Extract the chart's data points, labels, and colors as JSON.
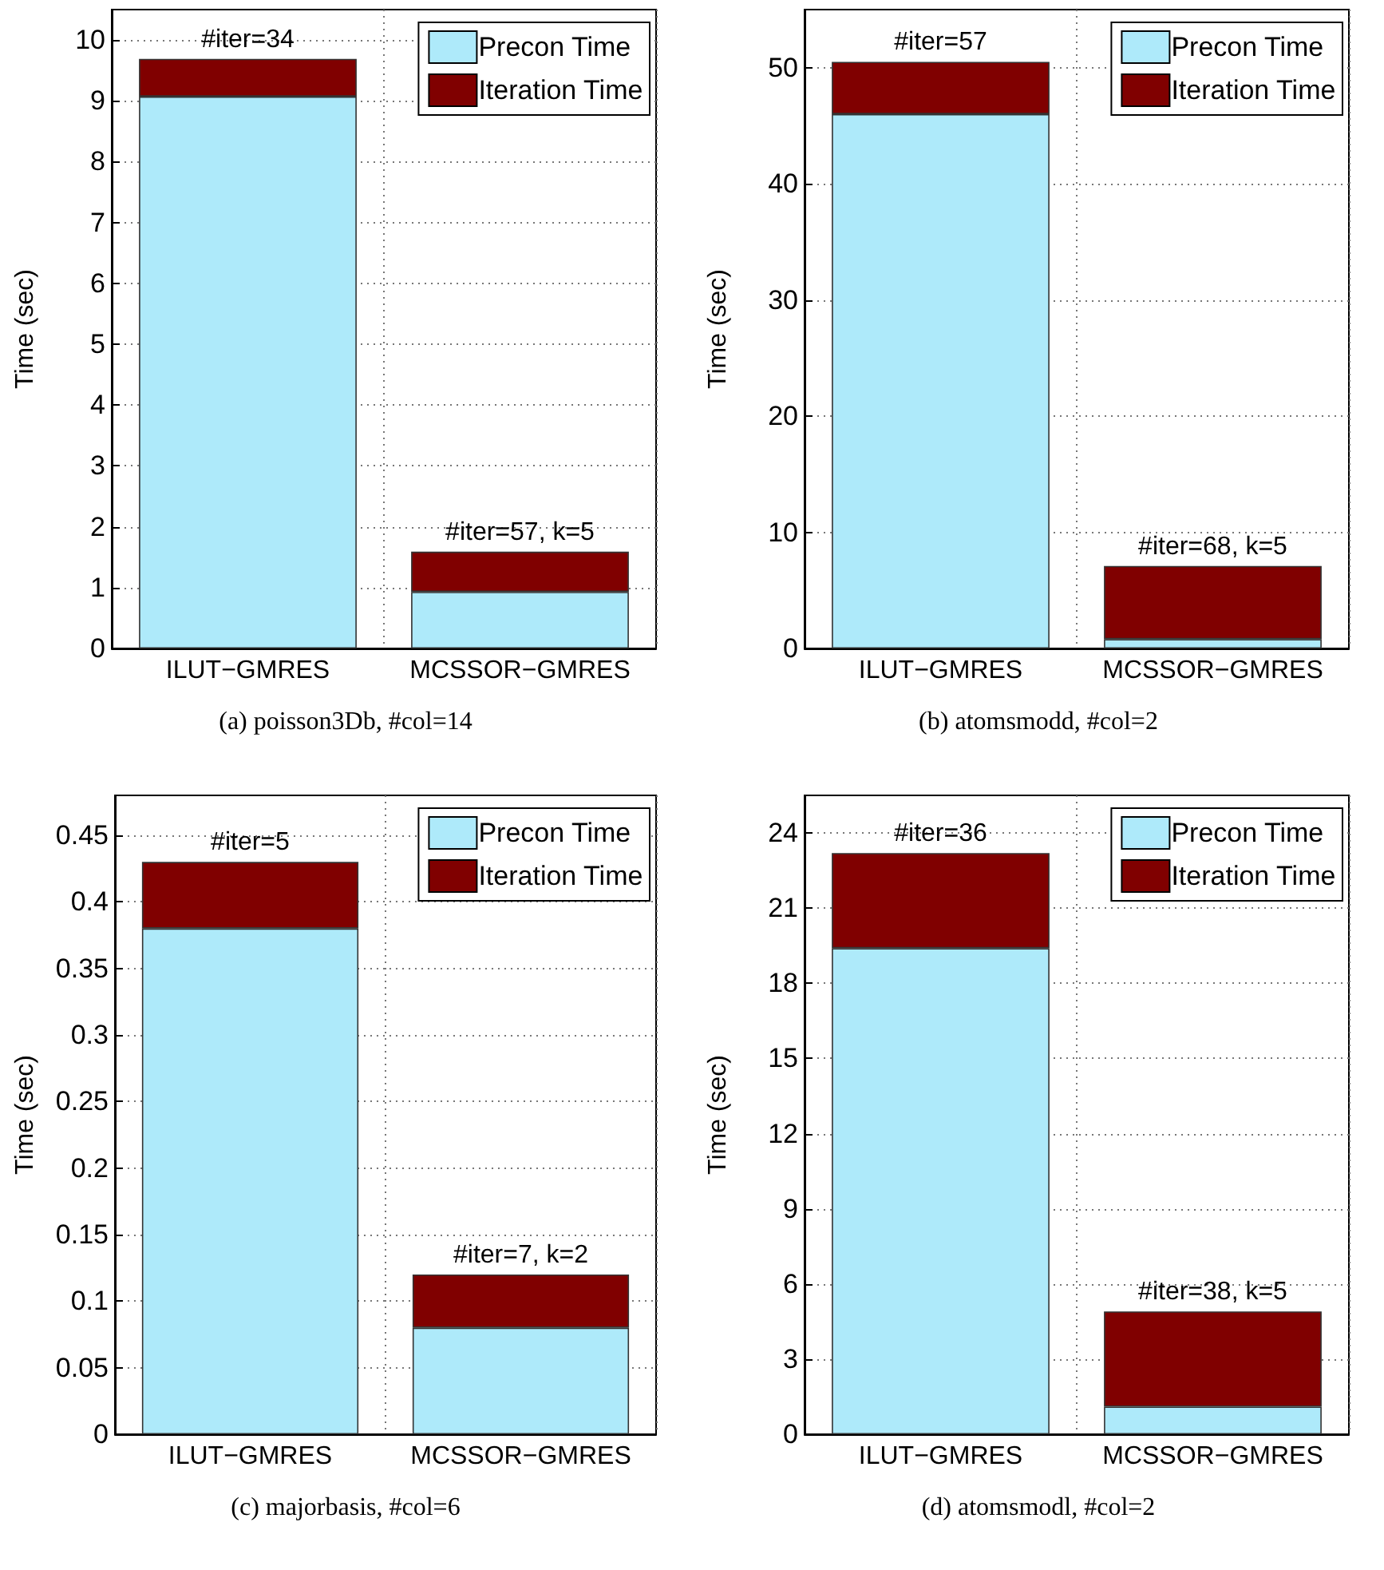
{
  "chart_data": [
    {
      "type": "bar",
      "stacked": true,
      "categories": [
        "ILUT−GMRES",
        "MCSSOR−GMRES"
      ],
      "ylabel": "Time (sec)",
      "ylim": [
        0,
        10.5
      ],
      "yticks": [
        0,
        1,
        2,
        3,
        4,
        5,
        6,
        7,
        8,
        9,
        10
      ],
      "grid": true,
      "legend": "top right",
      "series": [
        {
          "name": "Precon Time",
          "color": "#aeeafa",
          "values": [
            9.07,
            0.93
          ]
        },
        {
          "name": "Iteration Time",
          "color": "#800000",
          "values": [
            0.62,
            0.66
          ]
        }
      ],
      "annotations": [
        {
          "text": "#iter=34",
          "x": "ILUT−GMRES",
          "y": 9.69
        },
        {
          "text": "#iter=57, k=5",
          "x": "MCSSOR−GMRES",
          "y": 1.59
        },
        "(a) poisson3Db, #col=14"
      ]
    },
    {
      "type": "bar",
      "stacked": true,
      "categories": [
        "ILUT−GMRES",
        "MCSSOR−GMRES"
      ],
      "ylabel": "Time (sec)",
      "ylim": [
        0,
        55
      ],
      "yticks": [
        0,
        10,
        20,
        30,
        40,
        50
      ],
      "grid": true,
      "legend": "top right",
      "series": [
        {
          "name": "Precon Time",
          "color": "#aeeafa",
          "values": [
            46.0,
            0.8
          ]
        },
        {
          "name": "Iteration Time",
          "color": "#800000",
          "values": [
            4.5,
            6.3
          ]
        }
      ],
      "annotations": [
        {
          "text": "#iter=57",
          "x": "ILUT−GMRES",
          "y": 50.5
        },
        {
          "text": "#iter=68, k=5",
          "x": "MCSSOR−GMRES",
          "y": 7.1
        },
        "(b) atomsmodd, #col=2"
      ]
    },
    {
      "type": "bar",
      "stacked": true,
      "categories": [
        "ILUT−GMRES",
        "MCSSOR−GMRES"
      ],
      "ylabel": "Time (sec)",
      "ylim": [
        0,
        0.48
      ],
      "yticks": [
        0,
        0.05,
        0.1,
        0.15,
        0.2,
        0.25,
        0.3,
        0.35,
        0.4,
        0.45
      ],
      "grid": true,
      "legend": "top right",
      "series": [
        {
          "name": "Precon Time",
          "color": "#aeeafa",
          "values": [
            0.38,
            0.08
          ]
        },
        {
          "name": "Iteration Time",
          "color": "#800000",
          "values": [
            0.05,
            0.04
          ]
        }
      ],
      "annotations": [
        {
          "text": "#iter=5",
          "x": "ILUT−GMRES",
          "y": 0.43
        },
        {
          "text": "#iter=7, k=2",
          "x": "MCSSOR−GMRES",
          "y": 0.12
        },
        "(c) majorbasis, #col=6"
      ]
    },
    {
      "type": "bar",
      "stacked": true,
      "categories": [
        "ILUT−GMRES",
        "MCSSOR−GMRES"
      ],
      "ylabel": "Time (sec)",
      "ylim": [
        0,
        25.5
      ],
      "yticks": [
        0,
        3,
        6,
        9,
        12,
        15,
        18,
        21,
        24
      ],
      "grid": true,
      "legend": "top right",
      "series": [
        {
          "name": "Precon Time",
          "color": "#aeeafa",
          "values": [
            19.4,
            1.1
          ]
        },
        {
          "name": "Iteration Time",
          "color": "#800000",
          "values": [
            3.8,
            3.8
          ]
        }
      ],
      "annotations": [
        {
          "text": "#iter=36",
          "x": "ILUT−GMRES",
          "y": 23.2
        },
        {
          "text": "#iter=38, k=5",
          "x": "MCSSOR−GMRES",
          "y": 4.9
        },
        "(d) atomsmodl, #col=2"
      ]
    }
  ]
}
